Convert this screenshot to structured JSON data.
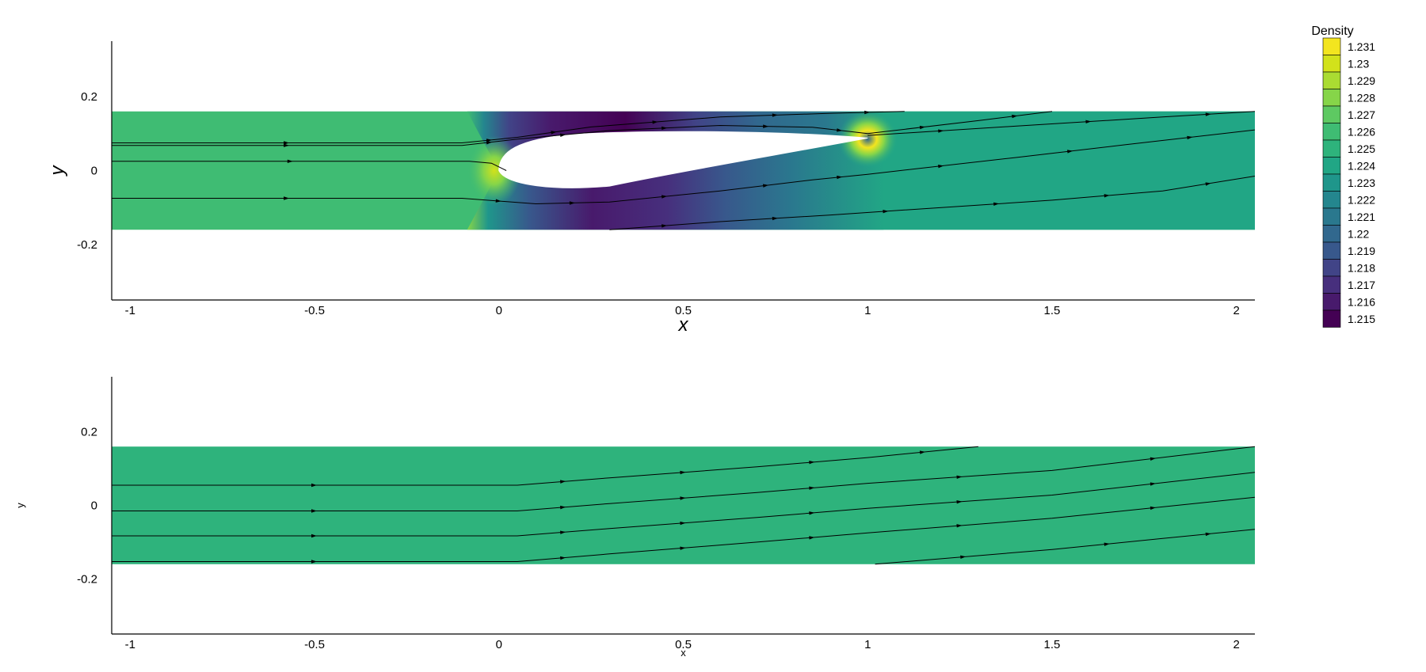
{
  "chart_data": {
    "type": "heatmap",
    "colorbar": {
      "title": "Density",
      "levels": [
        "1.231",
        "1.23",
        "1.229",
        "1.228",
        "1.227",
        "1.226",
        "1.225",
        "1.224",
        "1.223",
        "1.222",
        "1.221",
        "1.22",
        "1.219",
        "1.218",
        "1.217",
        "1.216",
        "1.215"
      ],
      "colors": [
        "#f3e51f",
        "#d2e21b",
        "#aadc32",
        "#86d549",
        "#5ec962",
        "#3fbc73",
        "#2eb37c",
        "#21a685",
        "#1f968b",
        "#24868e",
        "#2a788e",
        "#31688e",
        "#38588c",
        "#414487",
        "#472f7d",
        "#481a6c",
        "#440154"
      ]
    },
    "panels": [
      {
        "id": "top",
        "xlabel": "x",
        "ylabel": "y",
        "xlim": [
          -1.05,
          2.05
        ],
        "ylim": [
          -0.35,
          0.35
        ],
        "xticks": [
          -1,
          -0.5,
          0,
          0.5,
          1,
          1.5,
          2
        ],
        "yticks": [
          0.2,
          0,
          -0.2
        ],
        "domain_y": [
          -0.16,
          0.16
        ],
        "field_background": "#3fbc73",
        "airfoil": {
          "leading_edge_x": 0,
          "trailing_edge_x": 1
        },
        "streamlines": [
          [
            [
              -1.05,
              0.075
            ],
            [
              -0.1,
              0.075
            ],
            [
              0.05,
              0.09
            ],
            [
              0.25,
              0.118
            ],
            [
              0.6,
              0.145
            ],
            [
              0.9,
              0.155
            ],
            [
              1.1,
              0.16
            ]
          ],
          [
            [
              -1.05,
              0.068
            ],
            [
              -0.1,
              0.068
            ],
            [
              0.05,
              0.085
            ],
            [
              0.3,
              0.108
            ],
            [
              0.6,
              0.122
            ],
            [
              0.85,
              0.117
            ],
            [
              1.0,
              0.1
            ],
            [
              1.3,
              0.135
            ],
            [
              1.5,
              0.16
            ]
          ],
          [
            [
              -1.05,
              0.025
            ],
            [
              -0.08,
              0.025
            ],
            [
              -0.02,
              0.02
            ],
            [
              0.02,
              0.0
            ]
          ],
          [
            [
              1.0,
              0.095
            ],
            [
              1.4,
              0.12
            ],
            [
              1.8,
              0.145
            ],
            [
              2.05,
              0.16
            ]
          ],
          [
            [
              -1.05,
              -0.075
            ],
            [
              -0.1,
              -0.075
            ],
            [
              0.1,
              -0.09
            ],
            [
              0.3,
              -0.085
            ],
            [
              0.6,
              -0.055
            ],
            [
              0.85,
              -0.025
            ],
            [
              1.0,
              -0.01
            ],
            [
              1.4,
              0.035
            ],
            [
              1.7,
              0.07
            ],
            [
              2.05,
              0.11
            ]
          ],
          [
            [
              0.3,
              -0.16
            ],
            [
              0.6,
              -0.138
            ],
            [
              0.9,
              -0.12
            ],
            [
              1.2,
              -0.1
            ],
            [
              1.5,
              -0.08
            ],
            [
              1.8,
              -0.055
            ],
            [
              2.05,
              -0.015
            ]
          ]
        ]
      },
      {
        "id": "bottom",
        "xlabel": "x",
        "ylabel": "y",
        "xlim": [
          -1.05,
          2.05
        ],
        "ylim": [
          -0.35,
          0.35
        ],
        "xticks": [
          -1,
          -0.5,
          0,
          0.5,
          1,
          1.5,
          2
        ],
        "yticks": [
          0.2,
          0,
          -0.2
        ],
        "domain_y": [
          -0.16,
          0.16
        ],
        "field_background": "#2eb37c",
        "streamlines": [
          [
            [
              -1.05,
              0.055
            ],
            [
              0.05,
              0.055
            ],
            [
              0.3,
              0.075
            ],
            [
              0.7,
              0.105
            ],
            [
              1.0,
              0.13
            ],
            [
              1.3,
              0.16
            ]
          ],
          [
            [
              -1.05,
              -0.015
            ],
            [
              0.05,
              -0.015
            ],
            [
              0.3,
              0.005
            ],
            [
              0.7,
              0.035
            ],
            [
              1.0,
              0.06
            ],
            [
              1.5,
              0.095
            ],
            [
              2.05,
              0.16
            ]
          ],
          [
            [
              -1.05,
              -0.083
            ],
            [
              0.05,
              -0.083
            ],
            [
              0.3,
              -0.063
            ],
            [
              0.7,
              -0.033
            ],
            [
              1.0,
              -0.008
            ],
            [
              1.5,
              0.028
            ],
            [
              2.05,
              0.09
            ]
          ],
          [
            [
              -1.05,
              -0.153
            ],
            [
              0.05,
              -0.153
            ],
            [
              0.3,
              -0.132
            ],
            [
              0.7,
              -0.1
            ],
            [
              1.0,
              -0.075
            ],
            [
              1.5,
              -0.035
            ],
            [
              2.05,
              0.022
            ]
          ],
          [
            [
              1.02,
              -0.16
            ],
            [
              1.5,
              -0.12
            ],
            [
              1.8,
              -0.09
            ],
            [
              2.05,
              -0.065
            ]
          ]
        ]
      }
    ]
  }
}
